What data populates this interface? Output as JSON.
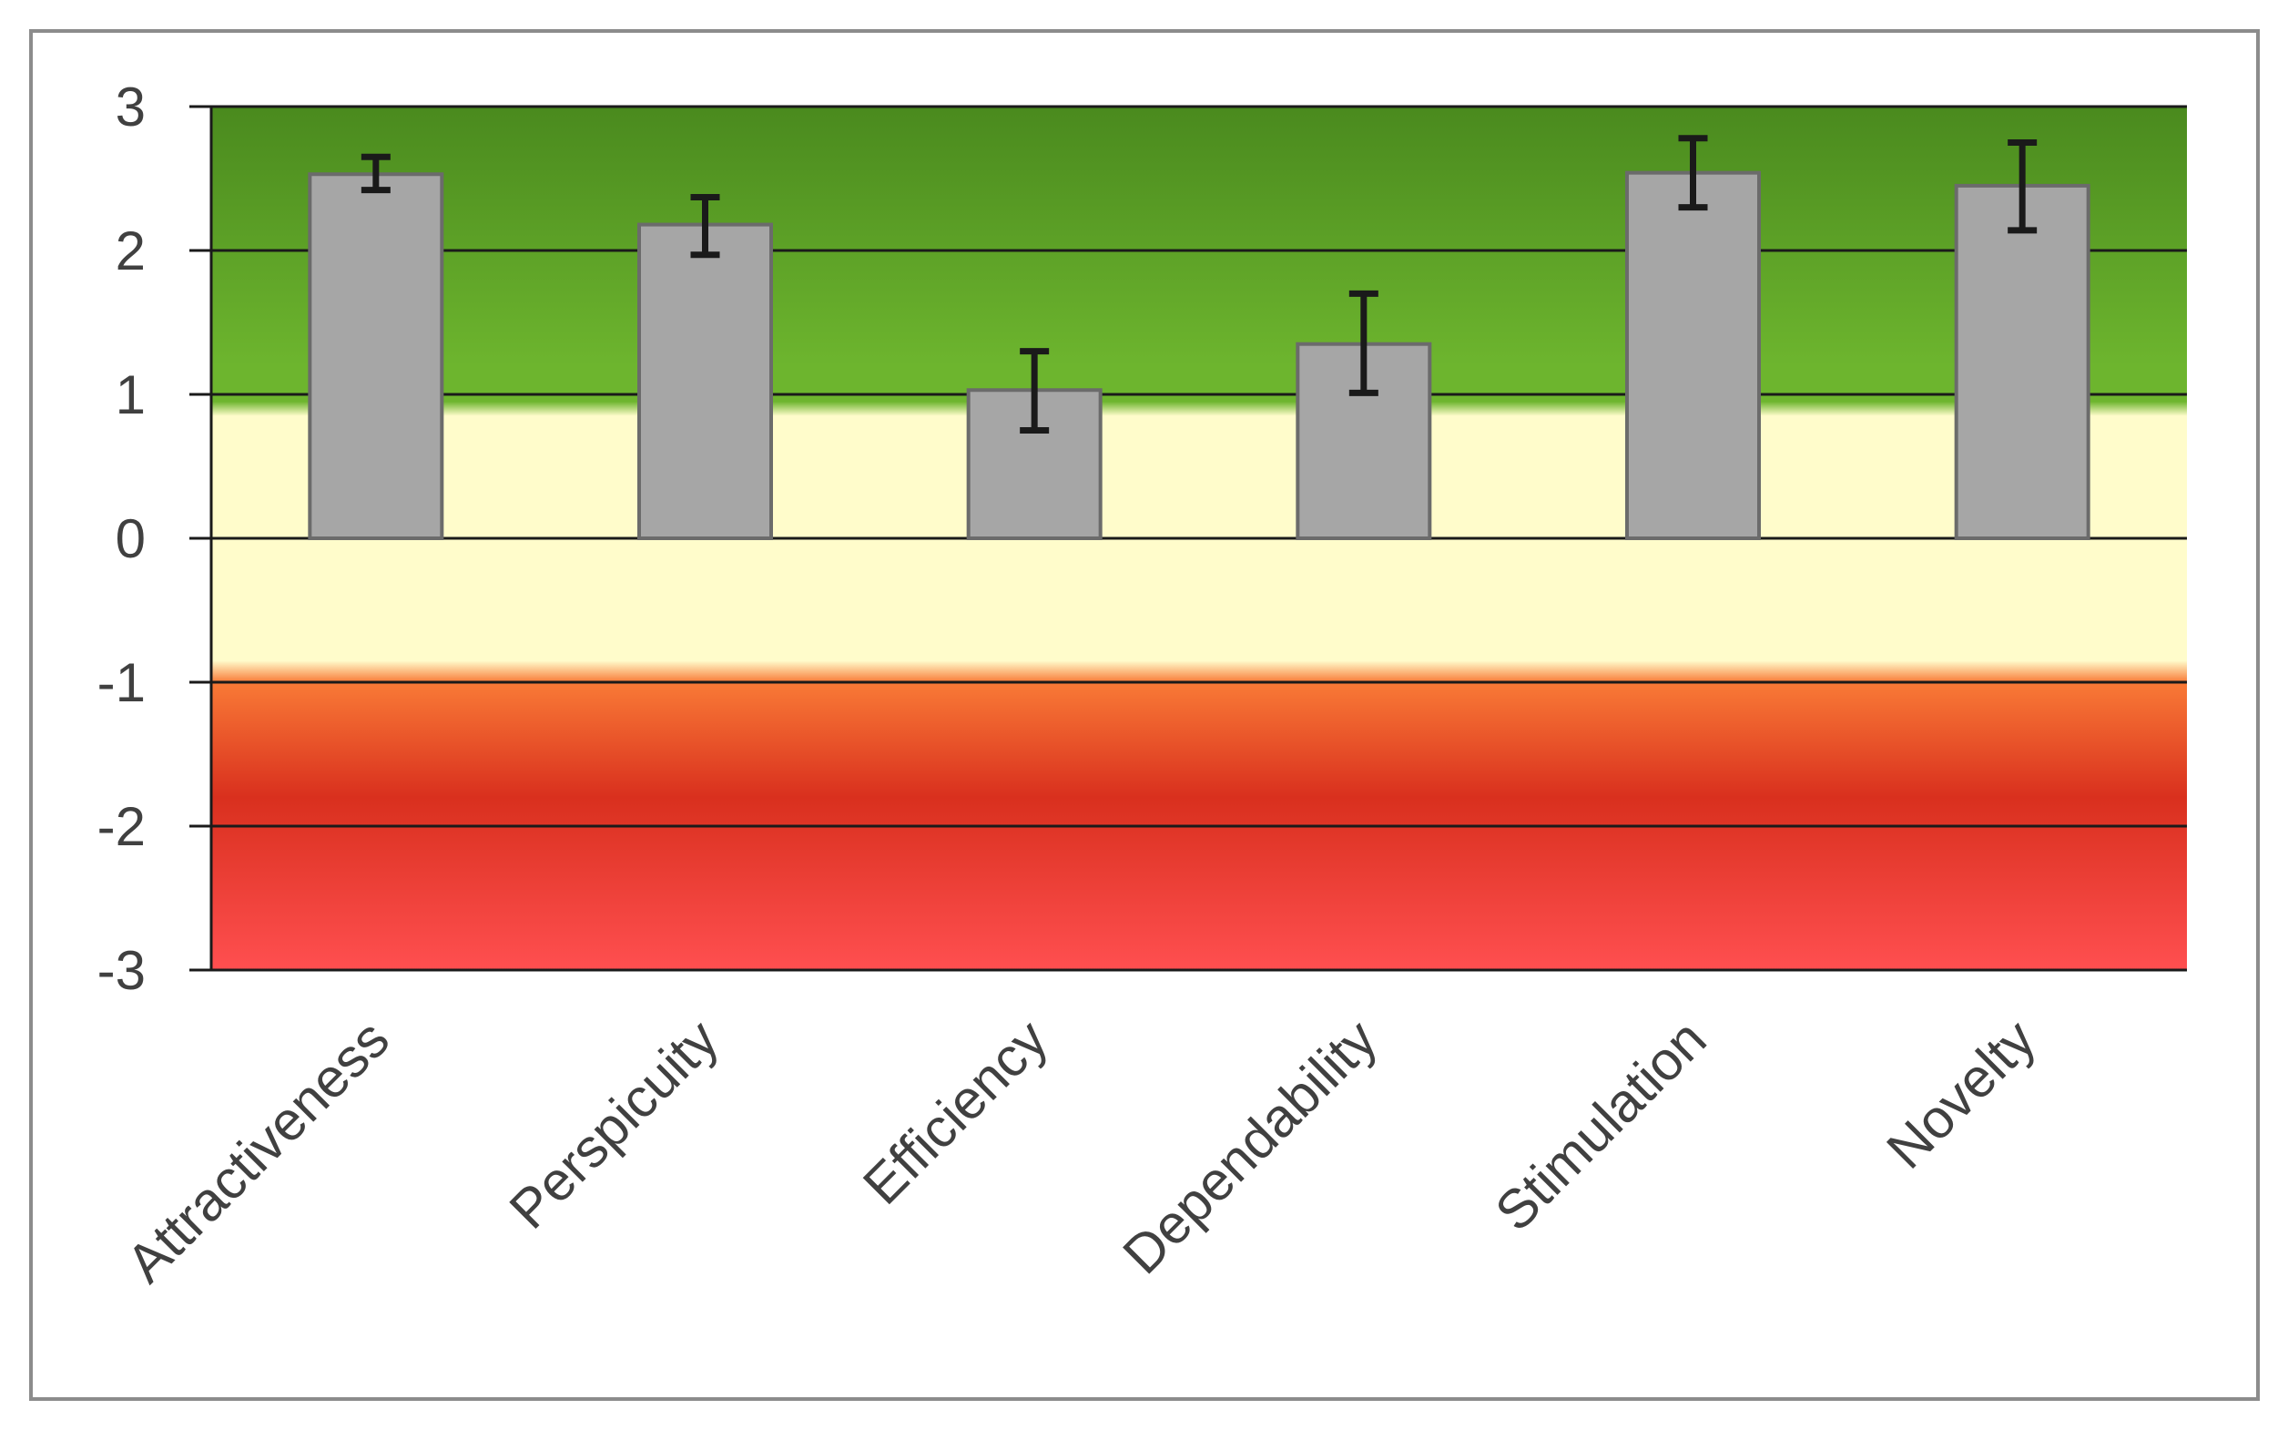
{
  "chart_data": {
    "type": "bar",
    "categories": [
      "Attractiveness",
      "Perspicuity",
      "Efficiency",
      "Dependability",
      "Stimulation",
      "Novelty"
    ],
    "values": [
      2.53,
      2.18,
      1.03,
      1.35,
      2.54,
      2.45
    ],
    "error_low": [
      2.42,
      1.97,
      0.75,
      1.01,
      2.3,
      2.14
    ],
    "error_high": [
      2.65,
      2.37,
      1.3,
      1.7,
      2.78,
      2.75
    ],
    "ylim": [
      -3,
      3
    ],
    "yticks": [
      3,
      2,
      1,
      0,
      -1,
      -2,
      -3
    ],
    "title": "",
    "xlabel": "",
    "ylabel": "",
    "grid": true,
    "colors": {
      "bar_fill": "#a6a6a6",
      "bar_stroke": "#6b6b6b",
      "error_bar": "#1a1a1a",
      "gridline": "#1a1a1a",
      "band_green_top": "#4a8a1e",
      "band_green_bottom": "#6db52e",
      "band_neutral": "#fffccb",
      "band_orange": "#f97a36",
      "band_red_mid": "#d9301e",
      "band_red_bottom": "#ff4f50"
    }
  }
}
